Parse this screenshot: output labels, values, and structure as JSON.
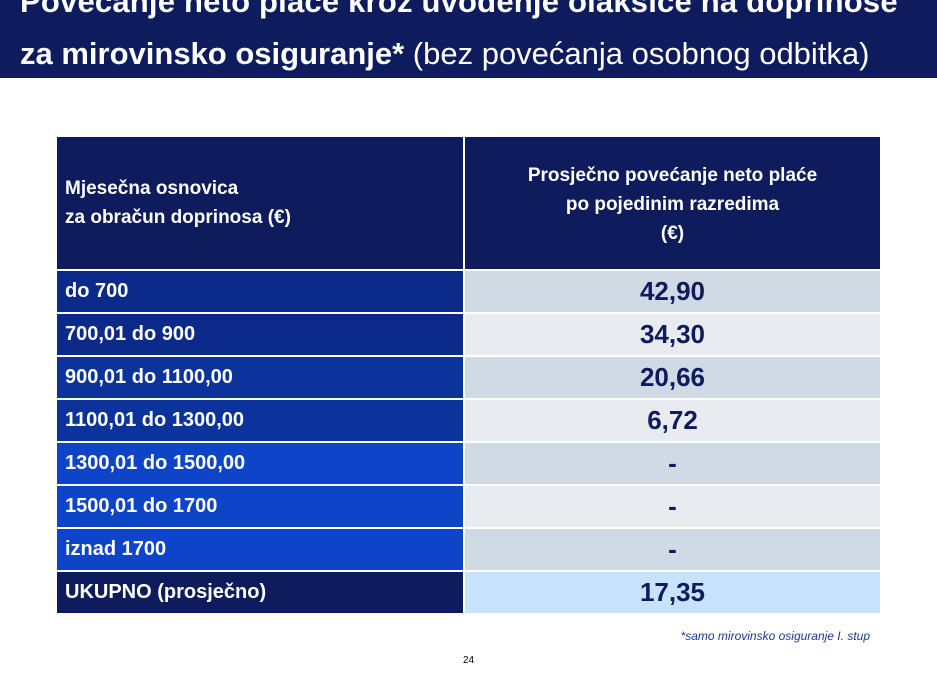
{
  "title": {
    "line1": "Povećanje neto plaće kroz uvođenje olakšice na doprinose",
    "line2_bold": "za mirovinsko osiguranje*",
    "line2_normal": " (bez povećanja osobnog odbitka)"
  },
  "table": {
    "header_col1": [
      "Mjesečna osnovica",
      "za obračun doprinosa (€)"
    ],
    "header_col2": [
      "Prosječno povećanje neto plaće",
      "po pojedinim razredima",
      "(€)"
    ],
    "rows": [
      {
        "label": "do 700",
        "value": "42,90",
        "label_color": "#0b2a8a",
        "value_bg": "#d0dae4"
      },
      {
        "label": "700,01 do 900",
        "value": "34,30",
        "label_color": "#0b2a8a",
        "value_bg": "#e8ecf0"
      },
      {
        "label": "900,01 do 1100,00",
        "value": "20,66",
        "label_color": "#0c339c",
        "value_bg": "#d0dae4"
      },
      {
        "label": "1100,01 do 1300,00",
        "value": "6,72",
        "label_color": "#0c339c",
        "value_bg": "#e8ecf0"
      },
      {
        "label": "1300,01 do 1500,00",
        "value": "-",
        "label_color": "#0d44c8",
        "value_bg": "#d0dae4"
      },
      {
        "label": "1500,01 do 1700",
        "value": "-",
        "label_color": "#0d44c8",
        "value_bg": "#e8ecf0"
      },
      {
        "label": "iznad 1700",
        "value": "-",
        "label_color": "#0d44c8",
        "value_bg": "#d0dae4"
      }
    ],
    "total": {
      "label": "UKUPNO (prosječno)",
      "value": "17,35",
      "label_color": "#0e1b5c",
      "value_bg": "#c6e3fb"
    }
  },
  "footnote": "*samo mirovinsko osiguranje I. stup",
  "page_number": "24"
}
